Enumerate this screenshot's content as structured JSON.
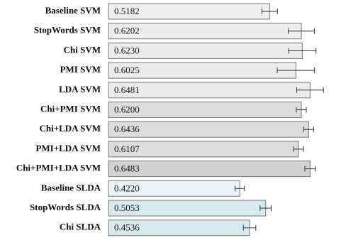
{
  "chart_data": {
    "type": "hbar",
    "categories": [
      "Baseline SVM",
      "StopWords SVM",
      "Chi SVM",
      "PMI SVM",
      "LDA SVM",
      "Chi+PMI SVM",
      "Chi+LDA SVM",
      "PMI+LDA SVM",
      "Chi+PMI+LDA SVM",
      "Baseline SLDA",
      "StopWords SLDA",
      "Chi SLDA"
    ],
    "values": [
      0.5182,
      0.6202,
      0.623,
      0.6025,
      0.6481,
      0.62,
      0.6436,
      0.6107,
      0.6483,
      0.422,
      0.5053,
      0.4536
    ],
    "value_labels": [
      "0.5182",
      "0.6202",
      "0.6230",
      "0.6025",
      "0.6481",
      "0.6200",
      "0.6436",
      "0.6107",
      "0.6483",
      "0.4220",
      "0.5053",
      "0.4536"
    ],
    "errors": [
      0.025,
      0.042,
      0.044,
      0.06,
      0.043,
      0.016,
      0.016,
      0.016,
      0.017,
      0.015,
      0.018,
      0.02
    ],
    "colors": [
      "#efefef",
      "#ececec",
      "#ececec",
      "#ececec",
      "#ececec",
      "#dddddd",
      "#dddddd",
      "#dddddd",
      "#d2d2d2",
      "#eaf4f7",
      "#d6eaf0",
      "#d6eaf0"
    ],
    "xlim": [
      0,
      0.8
    ]
  }
}
